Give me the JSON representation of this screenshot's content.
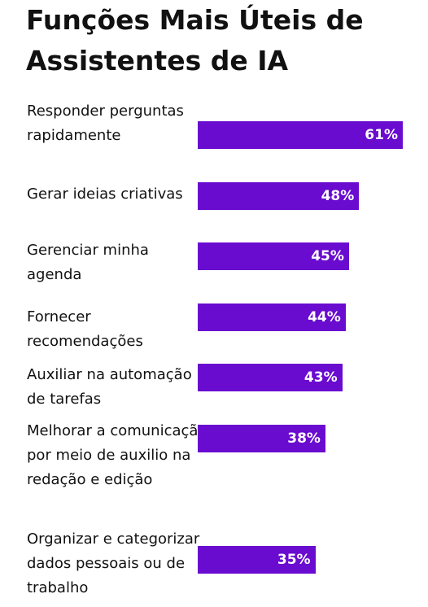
{
  "chart_data": {
    "type": "bar",
    "orientation": "horizontal",
    "title": "Funções Mais Úteis de Assistentes de IA",
    "categories": [
      "Responder perguntas rapidamente",
      "Gerar ideias criativas",
      "Gerenciar minha agenda",
      "Fornecer recomendações",
      "Auxiliar na automação de tarefas",
      "Melhorar a comunicação por meio de auxilio na redação e edição",
      "Organizar e categorizar dados pessoais ou de trabalho"
    ],
    "values": [
      61,
      48,
      45,
      44,
      43,
      38,
      35
    ],
    "value_labels": [
      "61%",
      "48%",
      "45%",
      "44%",
      "43%",
      "38%",
      "35%"
    ],
    "color": "#6a0bd0"
  }
}
